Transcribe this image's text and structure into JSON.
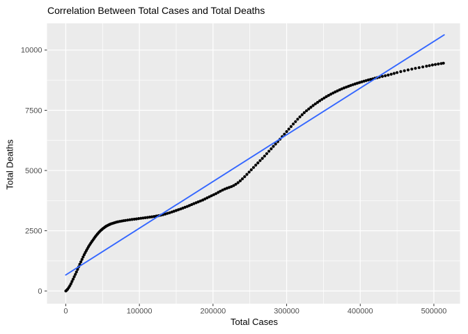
{
  "chart_data": {
    "type": "scatter",
    "title": "Correlation Between Total Cases and Total Deaths",
    "xlabel": "Total Cases",
    "ylabel": "Total Deaths",
    "legend": "none",
    "grid": "on",
    "panel_bg": "#EBEBEB",
    "grid_color": "#FFFFFF",
    "point_color": "#000000",
    "line_color": "#3366FF",
    "tick_color": "#333333",
    "tick_label_color": "#4D4D4D",
    "xlim": [
      -25500,
      535500
    ],
    "ylim": [
      -530,
      11110
    ],
    "x_tick_values": [
      0,
      100000,
      200000,
      300000,
      400000,
      500000
    ],
    "x_tick_labels": [
      "0",
      "100000",
      "200000",
      "300000",
      "400000",
      "500000"
    ],
    "x_minor_ticks": [
      50000,
      150000,
      250000,
      350000,
      450000
    ],
    "y_tick_values": [
      0,
      2500,
      5000,
      7500,
      10000
    ],
    "y_tick_labels": [
      "0",
      "2500",
      "5000",
      "7500",
      "10000"
    ],
    "y_minor_ticks": [
      1250,
      3750,
      6250,
      8750
    ],
    "regression_line": {
      "x": [
        0,
        514000
      ],
      "y": [
        665,
        10630
      ]
    },
    "points": [
      [
        0,
        0
      ],
      [
        1200,
        30
      ],
      [
        2500,
        75
      ],
      [
        4000,
        140
      ],
      [
        5500,
        215
      ],
      [
        7000,
        300
      ],
      [
        8500,
        395
      ],
      [
        10000,
        490
      ],
      [
        11500,
        590
      ],
      [
        13000,
        690
      ],
      [
        14500,
        790
      ],
      [
        16000,
        895
      ],
      [
        17500,
        1000
      ],
      [
        19000,
        1105
      ],
      [
        20500,
        1210
      ],
      [
        22000,
        1310
      ],
      [
        23500,
        1410
      ],
      [
        25000,
        1505
      ],
      [
        26500,
        1595
      ],
      [
        28000,
        1680
      ],
      [
        29500,
        1760
      ],
      [
        31000,
        1840
      ],
      [
        32500,
        1915
      ],
      [
        34000,
        1985
      ],
      [
        35500,
        2055
      ],
      [
        37000,
        2120
      ],
      [
        38500,
        2185
      ],
      [
        40000,
        2245
      ],
      [
        41500,
        2305
      ],
      [
        43000,
        2360
      ],
      [
        44500,
        2415
      ],
      [
        46000,
        2465
      ],
      [
        47500,
        2510
      ],
      [
        49000,
        2550
      ],
      [
        50500,
        2590
      ],
      [
        52000,
        2625
      ],
      [
        53500,
        2660
      ],
      [
        55000,
        2690
      ],
      [
        56500,
        2715
      ],
      [
        58000,
        2740
      ],
      [
        59500,
        2760
      ],
      [
        61000,
        2780
      ],
      [
        63000,
        2800
      ],
      [
        65000,
        2820
      ],
      [
        67000,
        2840
      ],
      [
        69000,
        2858
      ],
      [
        71000,
        2872
      ],
      [
        73500,
        2888
      ],
      [
        76000,
        2902
      ],
      [
        78500,
        2915
      ],
      [
        81000,
        2928
      ],
      [
        84000,
        2942
      ],
      [
        87000,
        2955
      ],
      [
        90000,
        2968
      ],
      [
        93000,
        2980
      ],
      [
        96000,
        2992
      ],
      [
        99000,
        3004
      ],
      [
        102000,
        3016
      ],
      [
        105000,
        3028
      ],
      [
        108000,
        3040
      ],
      [
        111000,
        3052
      ],
      [
        114000,
        3065
      ],
      [
        117000,
        3078
      ],
      [
        120000,
        3092
      ],
      [
        123000,
        3108
      ],
      [
        126000,
        3125
      ],
      [
        129000,
        3145
      ],
      [
        132000,
        3168
      ],
      [
        135000,
        3192
      ],
      [
        138000,
        3218
      ],
      [
        141000,
        3246
      ],
      [
        144000,
        3276
      ],
      [
        147000,
        3308
      ],
      [
        150000,
        3340
      ],
      [
        153000,
        3372
      ],
      [
        156000,
        3404
      ],
      [
        159000,
        3438
      ],
      [
        162000,
        3472
      ],
      [
        165000,
        3508
      ],
      [
        168000,
        3545
      ],
      [
        171000,
        3585
      ],
      [
        174000,
        3625
      ],
      [
        177000,
        3662
      ],
      [
        180000,
        3698
      ],
      [
        183000,
        3735
      ],
      [
        186000,
        3775
      ],
      [
        189000,
        3818
      ],
      [
        192000,
        3862
      ],
      [
        195000,
        3908
      ],
      [
        198000,
        3952
      ],
      [
        201000,
        3995
      ],
      [
        204000,
        4040
      ],
      [
        207000,
        4090
      ],
      [
        210000,
        4140
      ],
      [
        213000,
        4188
      ],
      [
        216000,
        4230
      ],
      [
        219000,
        4265
      ],
      [
        222000,
        4295
      ],
      [
        225000,
        4330
      ],
      [
        228000,
        4375
      ],
      [
        231000,
        4430
      ],
      [
        234000,
        4495
      ],
      [
        237000,
        4570
      ],
      [
        240000,
        4655
      ],
      [
        243000,
        4745
      ],
      [
        246000,
        4840
      ],
      [
        249000,
        4935
      ],
      [
        252000,
        5030
      ],
      [
        255000,
        5125
      ],
      [
        258000,
        5220
      ],
      [
        261000,
        5315
      ],
      [
        264000,
        5410
      ],
      [
        267000,
        5505
      ],
      [
        270000,
        5600
      ],
      [
        273000,
        5700
      ],
      [
        276000,
        5800
      ],
      [
        279000,
        5900
      ],
      [
        282000,
        6000
      ],
      [
        285000,
        6100
      ],
      [
        288000,
        6200
      ],
      [
        291000,
        6300
      ],
      [
        294000,
        6405
      ],
      [
        297000,
        6510
      ],
      [
        300000,
        6615
      ],
      [
        303000,
        6720
      ],
      [
        306000,
        6825
      ],
      [
        309000,
        6930
      ],
      [
        312000,
        7030
      ],
      [
        315000,
        7130
      ],
      [
        318000,
        7225
      ],
      [
        321000,
        7315
      ],
      [
        324000,
        7400
      ],
      [
        327000,
        7480
      ],
      [
        330000,
        7555
      ],
      [
        333000,
        7628
      ],
      [
        336000,
        7698
      ],
      [
        339000,
        7765
      ],
      [
        342000,
        7830
      ],
      [
        345000,
        7892
      ],
      [
        348000,
        7952
      ],
      [
        351000,
        8010
      ],
      [
        354000,
        8065
      ],
      [
        357000,
        8118
      ],
      [
        360000,
        8168
      ],
      [
        363000,
        8216
      ],
      [
        366000,
        8262
      ],
      [
        369000,
        8306
      ],
      [
        372000,
        8348
      ],
      [
        375000,
        8388
      ],
      [
        378000,
        8426
      ],
      [
        381000,
        8462
      ],
      [
        384000,
        8497
      ],
      [
        387000,
        8530
      ],
      [
        390000,
        8562
      ],
      [
        393000,
        8593
      ],
      [
        396000,
        8623
      ],
      [
        399000,
        8652
      ],
      [
        402000,
        8680
      ],
      [
        405000,
        8707
      ],
      [
        408000,
        8733
      ],
      [
        411000,
        8758
      ],
      [
        414000,
        8782
      ],
      [
        417000,
        8806
      ],
      [
        420000,
        8830
      ],
      [
        423000,
        8854
      ],
      [
        426000,
        8878
      ],
      [
        430000,
        8905
      ],
      [
        434000,
        8932
      ],
      [
        438000,
        8960
      ],
      [
        442000,
        8995
      ],
      [
        446000,
        9030
      ],
      [
        450000,
        9065
      ],
      [
        455000,
        9105
      ],
      [
        460000,
        9140
      ],
      [
        465000,
        9175
      ],
      [
        470000,
        9210
      ],
      [
        475000,
        9240
      ],
      [
        480000,
        9270
      ],
      [
        485000,
        9300
      ],
      [
        490000,
        9330
      ],
      [
        494000,
        9355
      ],
      [
        498000,
        9380
      ],
      [
        502000,
        9400
      ],
      [
        506000,
        9420
      ],
      [
        510000,
        9440
      ],
      [
        513000,
        9455
      ]
    ]
  }
}
